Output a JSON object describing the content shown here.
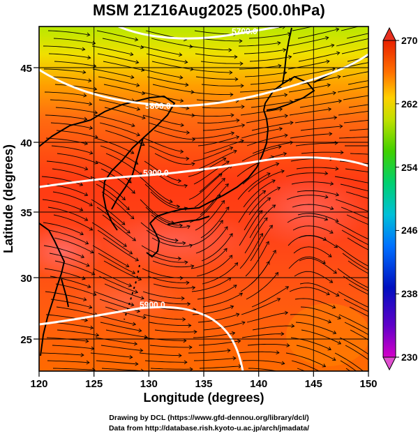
{
  "title": "MSM 21Z16Aug2025 (500.0hPa)",
  "x_axis": {
    "label": "Longitude (degrees)",
    "ticks": [
      "120",
      "125",
      "130",
      "135",
      "140",
      "145",
      "150"
    ]
  },
  "y_axis": {
    "label": "Latitude  (degrees)",
    "ticks": [
      "25",
      "30",
      "35",
      "40",
      "45"
    ]
  },
  "colorbar": {
    "ticks": [
      "270",
      "262",
      "254",
      "246",
      "238",
      "230"
    ],
    "range": [
      230,
      270
    ],
    "colors": [
      "#d400c8",
      "#0010c0",
      "#00a0ff",
      "#00e060",
      "#a0e000",
      "#ffe000",
      "#ff8000",
      "#ff3000",
      "#e02000"
    ]
  },
  "contours": {
    "label_5700": "5700.0",
    "label_5800": "5800.0",
    "label_5900_a": "5900.0",
    "label_5900_b": "5900.0"
  },
  "credits": {
    "line1": "Drawing by DCL (https://www.gfd-dennou.org/library/dcl/)",
    "line2": "Data from http://database.rish.kyoto-u.ac.jp/arch/jmadata/"
  }
}
